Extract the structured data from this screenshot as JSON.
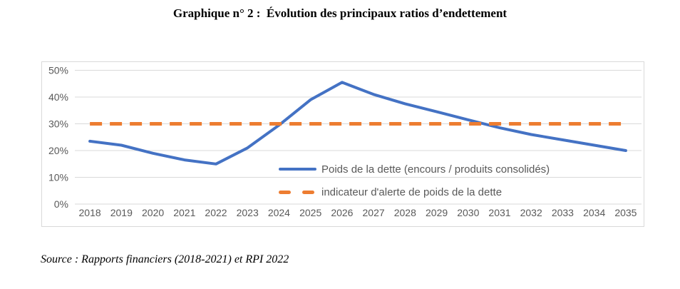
{
  "header": {
    "title": "Graphique n° 2 :  Évolution des principaux ratios d’endettement"
  },
  "footer": {
    "source": "Source : Rapports financiers (2018-2021) et RPI 2022"
  },
  "chart_data": {
    "type": "line",
    "title": "Graphique n° 2 : Évolution des principaux ratios d’endettement",
    "categories": [
      "2018",
      "2019",
      "2020",
      "2021",
      "2022",
      "2023",
      "2024",
      "2025",
      "2026",
      "2027",
      "2028",
      "2029",
      "2030",
      "2031",
      "2032",
      "2033",
      "2034",
      "2035"
    ],
    "series": [
      {
        "name": "Poids de la dette (encours / produits consolidés)",
        "color": "#4472C4",
        "line_style": "solid",
        "values": [
          23.5,
          22,
          19,
          16.5,
          15,
          21,
          29.5,
          39,
          45.5,
          41,
          37.5,
          34.5,
          31.5,
          28.5,
          26,
          24,
          22,
          20
        ]
      },
      {
        "name": "indicateur d'alerte de poids de la dette",
        "color": "#ED7D31",
        "line_style": "dashed",
        "values": [
          30,
          30,
          30,
          30,
          30,
          30,
          30,
          30,
          30,
          30,
          30,
          30,
          30,
          30,
          30,
          30,
          30,
          30
        ]
      }
    ],
    "xlabel": "",
    "ylabel": "",
    "ylim": [
      0,
      50
    ],
    "y_ticks": [
      {
        "value": 0,
        "label": "0%"
      },
      {
        "value": 10,
        "label": "10%"
      },
      {
        "value": 20,
        "label": "20%"
      },
      {
        "value": 30,
        "label": "30%"
      },
      {
        "value": 40,
        "label": "40%"
      },
      {
        "value": 50,
        "label": "50%"
      }
    ],
    "grid": true,
    "legend_position": "inside-center-right",
    "gridline_color": "#D9D9D9",
    "axis_label_color": "#595959",
    "source": "Source : Rapports financiers (2018-2021) et RPI 2022"
  }
}
